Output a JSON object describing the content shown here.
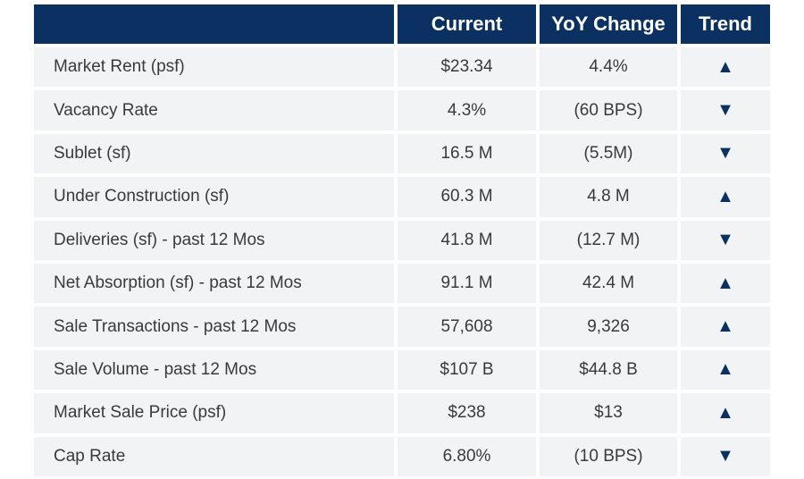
{
  "table": {
    "header": [
      "Current",
      "YoY Change",
      "Trend"
    ],
    "rows": [
      [
        "Market Rent (psf)",
        "$23.34",
        "4.4%",
        "▲"
      ],
      [
        "Vacancy Rate",
        "4.3%",
        "(60 BPS)",
        "▼"
      ],
      [
        "Sublet (sf)",
        "16.5 M",
        "(5.5M)",
        "▼"
      ],
      [
        "Under Construction (sf)",
        "60.3 M",
        "4.8 M",
        "▲"
      ],
      [
        "Deliveries (sf) - past 12 Mos",
        "41.8 M",
        "(12.7 M)",
        "▼"
      ],
      [
        "Net Absorption (sf) - past 12 Mos",
        "91.1 M",
        "42.4 M",
        "▲"
      ],
      [
        "Sale Transactions - past 12 Mos",
        "57,608",
        "9,326",
        "▲"
      ],
      [
        "Sale Volume - past 12 Mos",
        "$107 B",
        "$44.8 B",
        "▲"
      ],
      [
        "Market Sale Price (psf)",
        "$238",
        "$13",
        "▲"
      ],
      [
        "Cap Rate",
        "6.80%",
        "(10 BPS)",
        "▼"
      ]
    ]
  }
}
